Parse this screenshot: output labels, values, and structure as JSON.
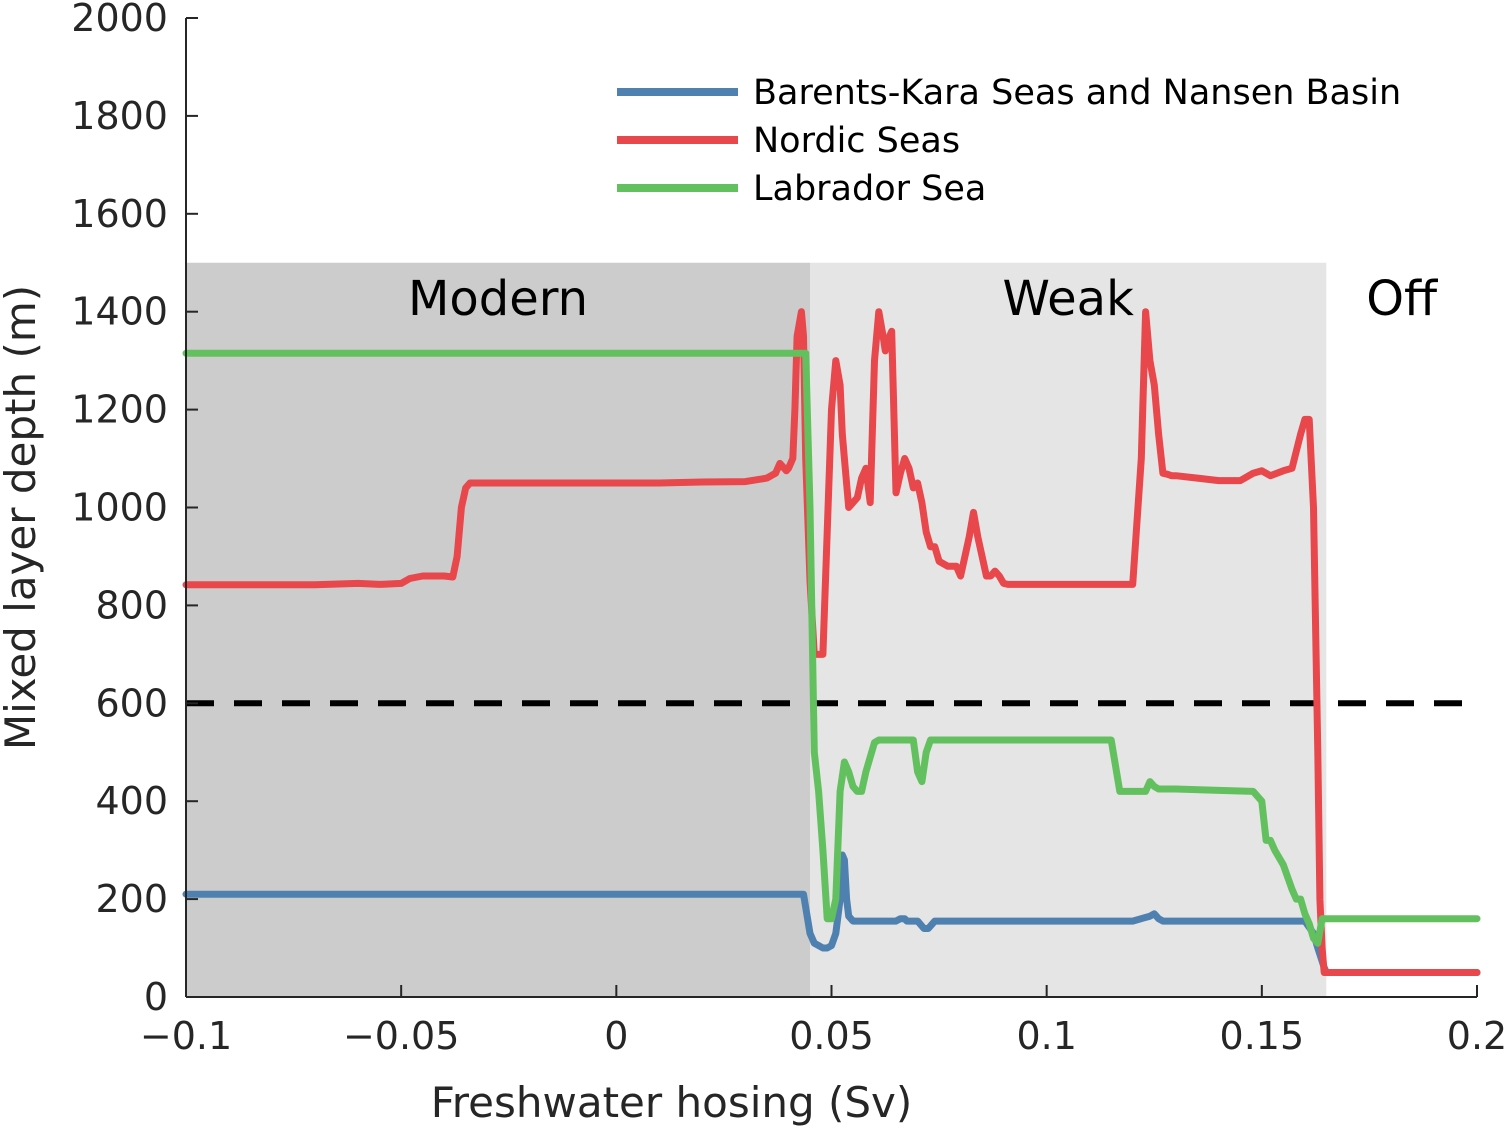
{
  "chart_data": {
    "type": "line",
    "xlabel": "Freshwater hosing (Sv)",
    "ylabel": "Mixed layer depth (m)",
    "xlim": [
      -0.1,
      0.2
    ],
    "ylim": [
      0,
      2000
    ],
    "x_ticks": [
      -0.1,
      -0.05,
      0,
      0.05,
      0.1,
      0.15,
      0.2
    ],
    "x_tick_labels": [
      "−0.1",
      "−0.05",
      "0",
      "0.05",
      "0.1",
      "0.15",
      "0.2"
    ],
    "y_ticks": [
      0,
      200,
      400,
      600,
      800,
      1000,
      1200,
      1400,
      1600,
      1800,
      2000
    ],
    "y_tick_labels": [
      "0",
      "200",
      "400",
      "600",
      "800",
      "1000",
      "1200",
      "1400",
      "1600",
      "1800",
      "2000"
    ],
    "legend_position": "top-right",
    "grid": false,
    "regions": [
      {
        "label": "Modern",
        "x_start": -0.1,
        "x_end": 0.045,
        "y_top": 1500,
        "color": "#cccccc"
      },
      {
        "label": "Weak",
        "x_start": 0.045,
        "x_end": 0.165,
        "y_top": 1500,
        "color": "#e5e5e5"
      },
      {
        "label": "Off",
        "x_start": 0.165,
        "x_end": 0.2,
        "y_top": 1500,
        "color": "#ffffff"
      }
    ],
    "threshold": {
      "y": 600,
      "style": "dashed",
      "color": "#000000"
    },
    "series": [
      {
        "name": "Barents-Kara Seas and Nansen Basin",
        "color": "#4f81b0",
        "x": [
          -0.1,
          0.04,
          0.0435,
          0.045,
          0.046,
          0.047,
          0.048,
          0.049,
          0.05,
          0.051,
          0.052,
          0.0525,
          0.053,
          0.0535,
          0.054,
          0.055,
          0.06,
          0.065,
          0.066,
          0.067,
          0.0675,
          0.07,
          0.0715,
          0.0725,
          0.0735,
          0.074,
          0.12,
          0.124,
          0.125,
          0.126,
          0.127,
          0.13,
          0.16,
          0.162,
          0.163,
          0.1645,
          0.165,
          0.2
        ],
        "y": [
          210,
          210,
          210,
          130,
          110,
          105,
          100,
          100,
          105,
          130,
          200,
          290,
          280,
          200,
          165,
          155,
          155,
          155,
          160,
          160,
          155,
          155,
          140,
          140,
          150,
          155,
          155,
          165,
          170,
          160,
          155,
          155,
          155,
          130,
          100,
          60,
          50,
          50
        ]
      },
      {
        "name": "Nordic Seas",
        "color": "#e8474b",
        "x": [
          -0.1,
          -0.07,
          -0.06,
          -0.055,
          -0.05,
          -0.048,
          -0.045,
          -0.04,
          -0.038,
          -0.037,
          -0.036,
          -0.035,
          -0.034,
          -0.033,
          0.01,
          0.02,
          0.03,
          0.035,
          0.037,
          0.038,
          0.039,
          0.0395,
          0.04,
          0.041,
          0.0415,
          0.042,
          0.043,
          0.0435,
          0.044,
          0.045,
          0.046,
          0.047,
          0.048,
          0.049,
          0.05,
          0.051,
          0.052,
          0.0525,
          0.053,
          0.054,
          0.055,
          0.056,
          0.057,
          0.058,
          0.059,
          0.06,
          0.061,
          0.062,
          0.0625,
          0.063,
          0.064,
          0.065,
          0.066,
          0.067,
          0.068,
          0.069,
          0.07,
          0.071,
          0.072,
          0.073,
          0.074,
          0.075,
          0.077,
          0.078,
          0.079,
          0.08,
          0.081,
          0.082,
          0.083,
          0.084,
          0.085,
          0.086,
          0.087,
          0.088,
          0.089,
          0.09,
          0.091,
          0.092,
          0.093,
          0.094,
          0.095,
          0.096,
          0.097,
          0.098,
          0.099,
          0.1,
          0.101,
          0.102,
          0.103,
          0.104,
          0.11,
          0.115,
          0.12,
          0.122,
          0.123,
          0.124,
          0.125,
          0.126,
          0.127,
          0.128,
          0.129,
          0.13,
          0.135,
          0.14,
          0.145,
          0.148,
          0.15,
          0.152,
          0.155,
          0.157,
          0.159,
          0.16,
          0.161,
          0.162,
          0.163,
          0.1635,
          0.164,
          0.1645,
          0.165,
          0.2
        ],
        "y": [
          842,
          842,
          845,
          843,
          845,
          855,
          860,
          860,
          858,
          900,
          1000,
          1040,
          1050,
          1050,
          1050,
          1052,
          1053,
          1060,
          1070,
          1090,
          1080,
          1075,
          1080,
          1100,
          1200,
          1350,
          1400,
          1350,
          1100,
          850,
          700,
          700,
          700,
          950,
          1200,
          1300,
          1250,
          1150,
          1100,
          1000,
          1010,
          1020,
          1060,
          1080,
          1010,
          1300,
          1400,
          1350,
          1320,
          1340,
          1360,
          1030,
          1070,
          1100,
          1080,
          1040,
          1050,
          1010,
          950,
          920,
          920,
          890,
          880,
          880,
          880,
          860,
          900,
          940,
          990,
          940,
          900,
          860,
          860,
          870,
          860,
          845,
          843,
          843,
          843,
          843,
          843,
          843,
          843,
          843,
          843,
          843,
          843,
          843,
          843,
          843,
          843,
          843,
          843,
          1100,
          1400,
          1300,
          1250,
          1150,
          1070,
          1068,
          1065,
          1065,
          1060,
          1055,
          1055,
          1070,
          1075,
          1065,
          1075,
          1080,
          1150,
          1180,
          1180,
          1000,
          500,
          200,
          100,
          50,
          50,
          50
        ],
        "y_note": ""
      },
      {
        "name": "Labrador Sea",
        "color": "#63c05f",
        "x": [
          -0.1,
          0.04,
          0.044,
          0.045,
          0.046,
          0.047,
          0.048,
          0.049,
          0.05,
          0.051,
          0.052,
          0.053,
          0.054,
          0.055,
          0.056,
          0.057,
          0.058,
          0.06,
          0.061,
          0.062,
          0.065,
          0.069,
          0.07,
          0.071,
          0.072,
          0.073,
          0.08,
          0.09,
          0.1,
          0.11,
          0.115,
          0.117,
          0.12,
          0.123,
          0.124,
          0.125,
          0.126,
          0.13,
          0.14,
          0.148,
          0.15,
          0.151,
          0.152,
          0.153,
          0.155,
          0.157,
          0.158,
          0.159,
          0.16,
          0.161,
          0.162,
          0.163,
          0.164,
          0.165,
          0.2
        ],
        "y": [
          1315,
          1315,
          1315,
          1000,
          500,
          420,
          300,
          160,
          160,
          200,
          420,
          480,
          460,
          430,
          420,
          420,
          460,
          520,
          525,
          525,
          525,
          525,
          460,
          440,
          500,
          525,
          525,
          525,
          525,
          525,
          525,
          420,
          420,
          420,
          440,
          430,
          425,
          425,
          422,
          420,
          400,
          320,
          320,
          300,
          270,
          220,
          200,
          200,
          170,
          150,
          120,
          110,
          160,
          160,
          160
        ]
      }
    ]
  }
}
